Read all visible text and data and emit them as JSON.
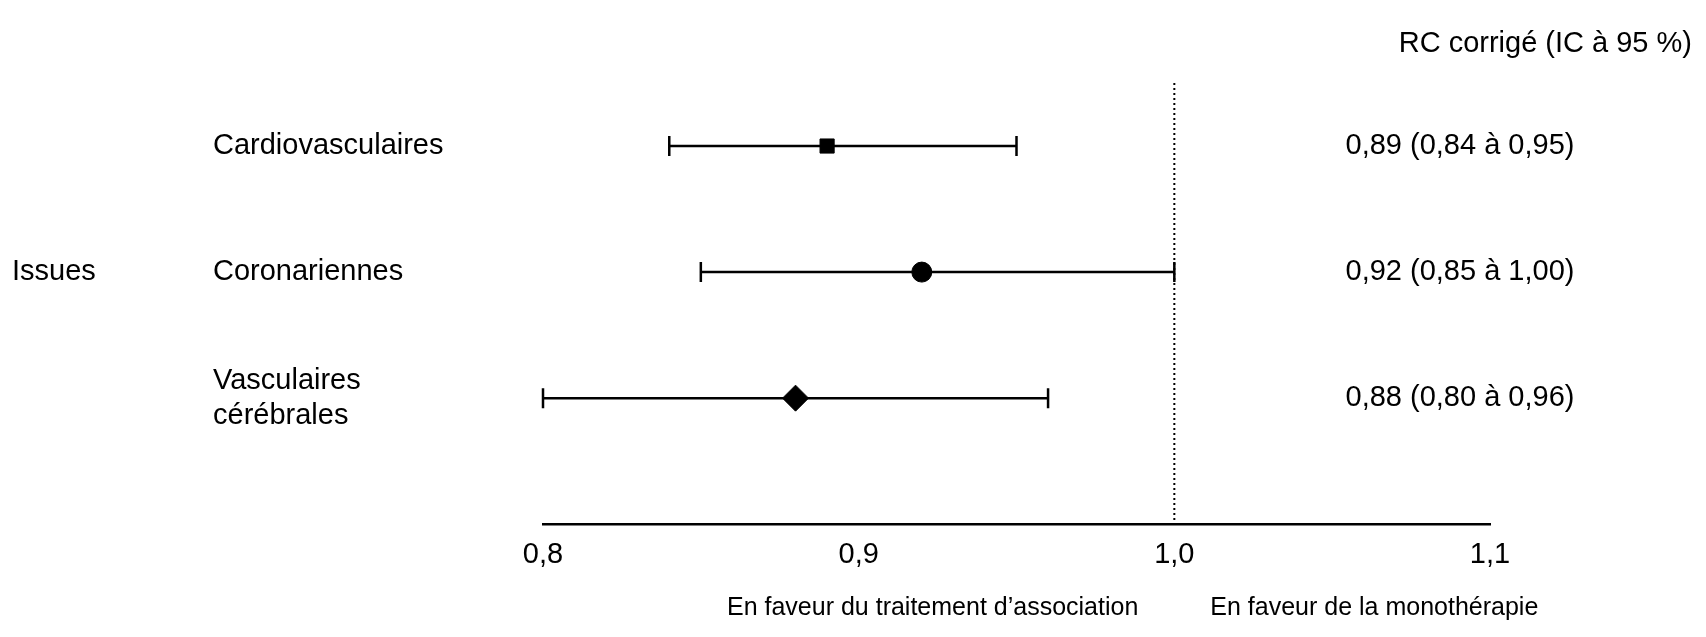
{
  "chart_data": {
    "type": "scatter",
    "orientation": "horizontal",
    "title": "RC corrigé (IC à 95 %)",
    "ylabel": "Issues",
    "categories": [
      "Cardiovasculaires",
      "Coronariennes",
      "Vasculaires cérébrales"
    ],
    "series": [
      {
        "color": "#000000",
        "marker": "square",
        "values": [
          0.89,
          null,
          null
        ],
        "errors": [
          [
            0.84,
            0.95
          ],
          null,
          null
        ]
      },
      {
        "color": "#000000",
        "marker": "circle",
        "values": [
          null,
          0.92,
          null
        ],
        "errors": [
          null,
          [
            0.85,
            1.0
          ],
          null
        ]
      },
      {
        "color": "#000000",
        "marker": "diamond",
        "values": [
          null,
          null,
          0.88
        ],
        "errors": [
          null,
          null,
          [
            0.8,
            0.96
          ]
        ]
      }
    ],
    "xlim": [
      0.8,
      1.1
    ],
    "xticks": [
      {
        "value": 0.8,
        "label": "0,8"
      },
      {
        "value": 0.9,
        "label": "0,9"
      },
      {
        "value": 1.0,
        "label": "1,0"
      },
      {
        "value": 1.1,
        "label": "1,1"
      }
    ],
    "ref_lines": [
      {
        "axis": "x",
        "value": 1.0,
        "line_style": "dotted",
        "color": "#000000"
      }
    ],
    "annotations": [
      "0,89 (0,84 à 0,95)",
      "0,92 (0,85 à 1,00)",
      "0,88 (0,80 à 0,96)",
      "En faveur du traitement d’association",
      "En faveur de la monothérapie"
    ],
    "grid": false,
    "legend": false
  }
}
